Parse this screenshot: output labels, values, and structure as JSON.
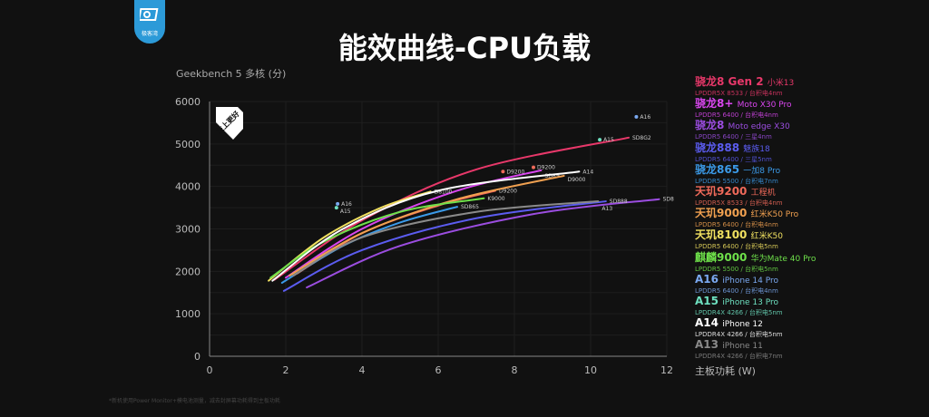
{
  "logo_text": "极客湾",
  "title": "能效曲线-CPU负载",
  "chart_data": {
    "type": "line",
    "title": "能效曲线-CPU负载",
    "ylabel": "Geekbench 5 多核 (分)",
    "xlabel": "主板功耗 (W)",
    "xlim": [
      0,
      12
    ],
    "ylim": [
      0,
      6000
    ],
    "xticks": [
      "0",
      "2",
      "4",
      "6",
      "8",
      "10",
      "12"
    ],
    "yticks": [
      "0",
      "1000",
      "2000",
      "3000",
      "4000",
      "5000",
      "6000"
    ],
    "grid": true,
    "legend_placement": "right",
    "corner_badge": "左上更好",
    "series": [
      {
        "name": "骁龙8 Gen 2",
        "device": "小米13",
        "spec": "LPDDR5X 8533 / 台积电4nm",
        "color": "#e8386a",
        "label": "SD8G2",
        "points": [
          [
            1.7,
            1800
          ],
          [
            4,
            3200
          ],
          [
            7,
            4400
          ],
          [
            11,
            5150
          ]
        ]
      },
      {
        "name": "骁龙8+",
        "device": "Moto X30 Pro",
        "spec": "LPDDR5 6400 / 台积电4nm",
        "color": "#d946ef",
        "label": "SD8+",
        "points": [
          [
            2.0,
            1850
          ],
          [
            4,
            3000
          ],
          [
            6.5,
            3900
          ],
          [
            8.7,
            4380
          ]
        ]
      },
      {
        "name": "骁龙8",
        "device": "Moto edge X30",
        "spec": "LPDDR5 6400 / 三星4nm",
        "color": "#9b4de0",
        "label": "SD8",
        "points": [
          [
            2.55,
            1620
          ],
          [
            5,
            2600
          ],
          [
            8.5,
            3350
          ],
          [
            11.8,
            3700
          ]
        ]
      },
      {
        "name": "骁龙888",
        "device": "魅族18",
        "spec": "LPDDR5 6400 / 三星5nm",
        "color": "#5b5cf0",
        "label": "SD888",
        "points": [
          [
            1.95,
            1540
          ],
          [
            4,
            2500
          ],
          [
            7,
            3250
          ],
          [
            10.4,
            3650
          ]
        ]
      },
      {
        "name": "骁龙865",
        "device": "一加8 Pro",
        "spec": "LPDDR5 5500 / 台积电7nm",
        "color": "#3b9ae8",
        "label": "SD865",
        "points": [
          [
            1.9,
            1730
          ],
          [
            3.5,
            2600
          ],
          [
            5,
            3150
          ],
          [
            6.5,
            3520
          ]
        ]
      },
      {
        "name": "天玑9200",
        "device": "工程机",
        "spec": "LPDDR5X 8533 / 台积电4nm",
        "color": "#f06a5a",
        "label": "D9200",
        "points": [
          [
            2.3,
            1950
          ],
          [
            4,
            2900
          ],
          [
            6,
            3550
          ],
          [
            7.5,
            3900
          ]
        ]
      },
      {
        "name": "天玑9000",
        "device": "红米K50 Pro",
        "spec": "LPDDR5 6400 / 台积电4nm",
        "color": "#f0a050",
        "label": "D9000",
        "points": [
          [
            2.1,
            1900
          ],
          [
            4,
            2900
          ],
          [
            6.5,
            3700
          ],
          [
            9.3,
            4250
          ]
        ]
      },
      {
        "name": "天玑8100",
        "device": "红米K50",
        "spec": "LPDDR5 6400 / 台积电5nm",
        "color": "#f0e060",
        "label": "D8100",
        "points": [
          [
            1.55,
            1780
          ],
          [
            3,
            2800
          ],
          [
            4.5,
            3500
          ],
          [
            5.8,
            3880
          ]
        ]
      },
      {
        "name": "麒麟9000",
        "device": "华为Mate 40 Pro",
        "spec": "LPDDR5 5500 / 台积电5nm",
        "color": "#6ee04a",
        "label": "K9000",
        "points": [
          [
            1.6,
            1850
          ],
          [
            3,
            2700
          ],
          [
            5,
            3400
          ],
          [
            7.2,
            3720
          ]
        ]
      },
      {
        "name": "A16",
        "device": "iPhone 14 Pro",
        "spec": "LPDDR5 6400 / 台积电4nm",
        "color": "#7aa8f0",
        "label": "A16",
        "points": [
          [
            3.36,
            3590
          ],
          [
            11.2,
            5640
          ]
        ],
        "markers_only": true
      },
      {
        "name": "A15",
        "device": "iPhone 13 Pro",
        "spec": "LPDDR4X 4266 / 台积电5nm",
        "color": "#6ee0c0",
        "label": "A15",
        "points": [
          [
            3.33,
            3500
          ],
          [
            10.24,
            5100
          ]
        ],
        "markers_only": true
      },
      {
        "name": "A14",
        "device": "iPhone 12",
        "spec": "LPDDR4X 4266 / 台积电5nm",
        "color": "#ffffff",
        "label": "A14",
        "points": [
          [
            1.65,
            1780
          ],
          [
            3.5,
            3000
          ],
          [
            6,
            3900
          ],
          [
            9.7,
            4350
          ]
        ]
      },
      {
        "name": "A13",
        "device": "iPhone 11",
        "spec": "LPDDR4X 4266 / 台积电7nm",
        "color": "#8a8a8a",
        "label": "A13",
        "points": [
          [
            2.2,
            1900
          ],
          [
            4,
            2800
          ],
          [
            7,
            3400
          ],
          [
            10.2,
            3650
          ]
        ]
      }
    ],
    "extra_points": [
      {
        "label": "D9200",
        "x": 7.7,
        "y": 4350,
        "color": "#f06a5a"
      },
      {
        "label": "D9200",
        "x": 8.5,
        "y": 4450,
        "color": "#f06a5a"
      }
    ]
  },
  "footnote": "*新机使用Power Monitor+模电池测量，减去封屏幕功耗得到主板功耗"
}
